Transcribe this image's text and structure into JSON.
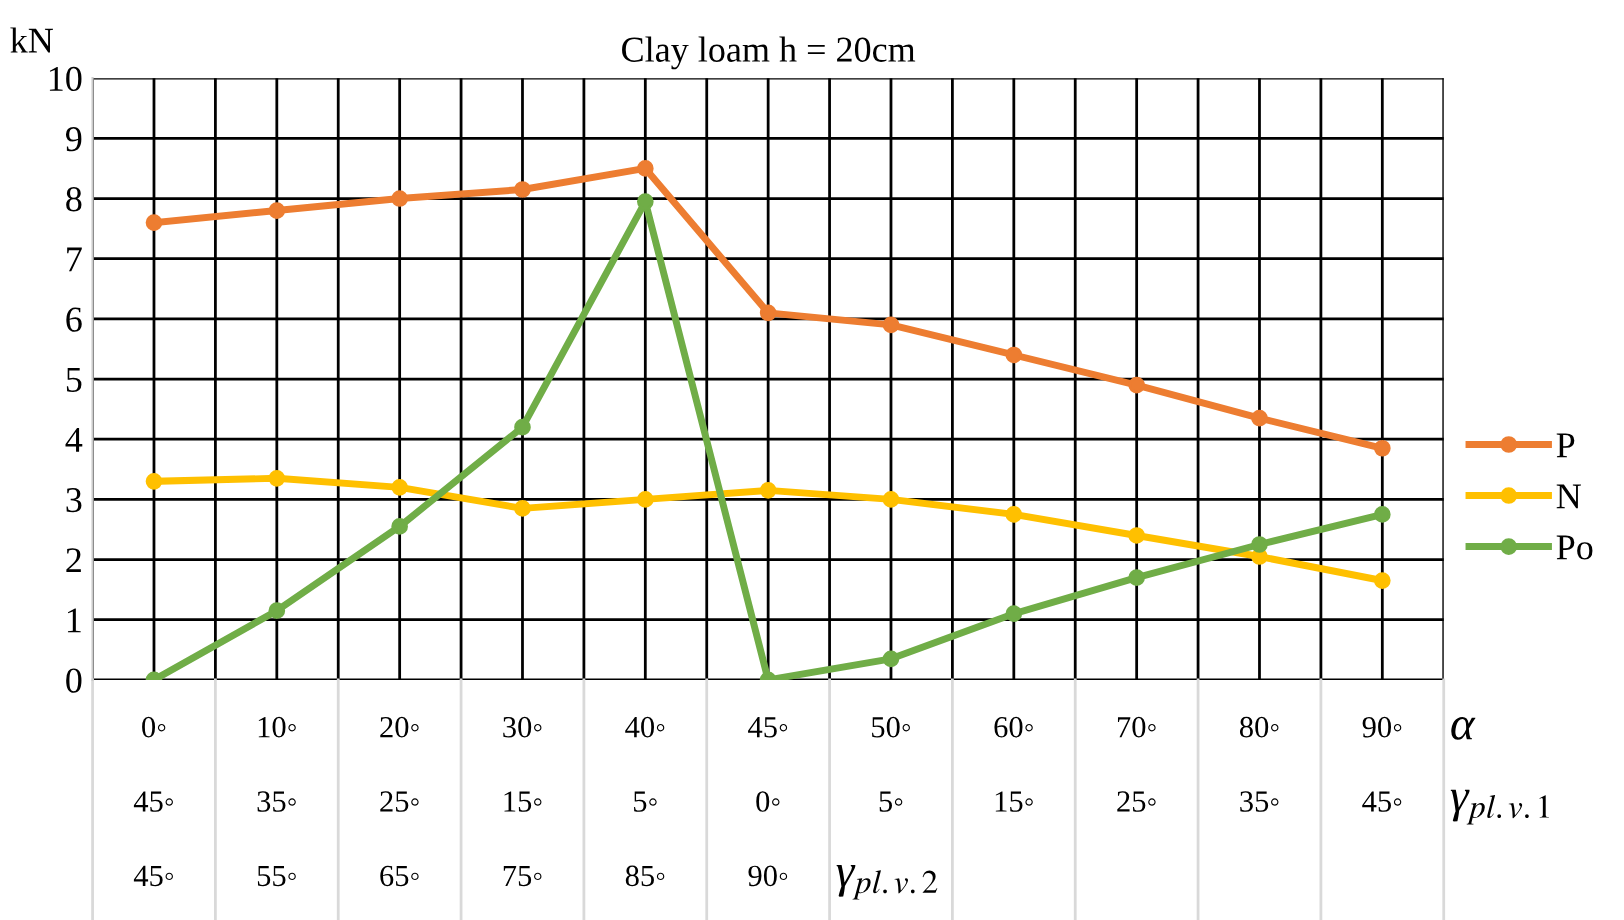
{
  "chart_data": {
    "type": "line",
    "title": "Clay loam h = 20cm",
    "ylabel": "kN",
    "categories": [
      "0◦\n45◦\n45◦",
      "10◦\n35◦\n55◦",
      "20◦\n25◦\n65◦",
      "30◦\n15◦\n75◦",
      "40◦\n5◦\n85◦",
      "45◦\n0◦\n90◦",
      "50◦\n5◦",
      "60◦\n15◦",
      "70◦\n25◦",
      "80◦\n35◦",
      "90◦\n45◦"
    ],
    "series": [
      {
        "name": "P",
        "color": "#ed7d31",
        "values": [
          7.6,
          7.8,
          8.0,
          8.15,
          8.5,
          6.1,
          5.9,
          5.4,
          4.9,
          4.35,
          3.85
        ]
      },
      {
        "name": "N",
        "color": "#ffc000",
        "values": [
          3.3,
          3.35,
          3.2,
          2.85,
          3.0,
          3.15,
          3.0,
          2.75,
          2.4,
          2.05,
          1.65
        ]
      },
      {
        "name": "Po",
        "color": "#70ad47",
        "values": [
          0.0,
          1.15,
          2.55,
          4.2,
          7.95,
          0.0,
          0.35,
          1.1,
          1.7,
          2.25,
          2.75
        ]
      }
    ],
    "ylim": [
      0,
      10
    ],
    "yticks": [
      0,
      1,
      2,
      3,
      4,
      5,
      6,
      7,
      8,
      9,
      10
    ],
    "annotations": [
      "α",
      "γ$_{pl.v.1}$",
      "γ$_{pl.v.2}$"
    ],
    "grid": true,
    "legend": "right",
    "marker": "circle",
    "line_style": "solid"
  }
}
